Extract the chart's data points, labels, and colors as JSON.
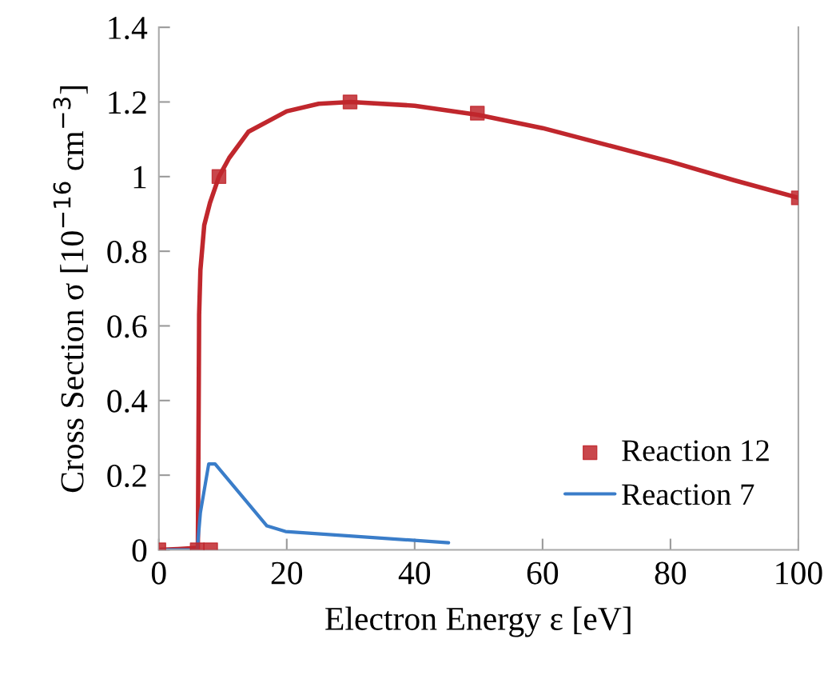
{
  "chart_data": {
    "type": "line",
    "xlabel": "Electron Energy ε [eV]",
    "ylabel": "Cross Section σ [10$^{−16}$ cm$^{−3}$]",
    "xlim": [
      0,
      100
    ],
    "xticks": [
      0,
      20,
      40,
      60,
      80,
      100
    ],
    "ylim": [
      0,
      1.4
    ],
    "yticks": [
      0,
      0.2,
      0.4,
      0.6,
      0.8,
      1,
      1.2,
      1.4
    ],
    "grid": false,
    "legend": "bottom right",
    "series": [
      {
        "name": "Reaction 12",
        "type": "scatter",
        "marker": "square",
        "color": "#c0272d",
        "x": [
          0,
          6,
          8.1,
          9.4,
          29.9,
          49.8,
          100
        ],
        "values": [
          0,
          0,
          0,
          1.0,
          1.2,
          1.17,
          0.943
        ]
      },
      {
        "marker": "none",
        "color": "#c0272d",
        "x": [
          0,
          3,
          6.1,
          6.2,
          6.3,
          6.5,
          7.1,
          8,
          9.4,
          11,
          14,
          20,
          25,
          30,
          40,
          50,
          60,
          70,
          80,
          90,
          100
        ],
        "values": [
          0,
          0.002,
          0.005,
          0.3,
          0.63,
          0.75,
          0.87,
          0.93,
          1.0,
          1.05,
          1.12,
          1.175,
          1.195,
          1.2,
          1.19,
          1.165,
          1.13,
          1.085,
          1.04,
          0.99,
          0.943
        ]
      },
      {
        "name": "Reaction 7",
        "marker": "none",
        "color": "#3a7dc9",
        "x": [
          0,
          6,
          6.5,
          7.8,
          8.8,
          16.9,
          19.8,
          45.3
        ],
        "values": [
          0,
          0,
          0.1,
          0.23,
          0.23,
          0.064,
          0.049,
          0.019
        ]
      }
    ]
  }
}
